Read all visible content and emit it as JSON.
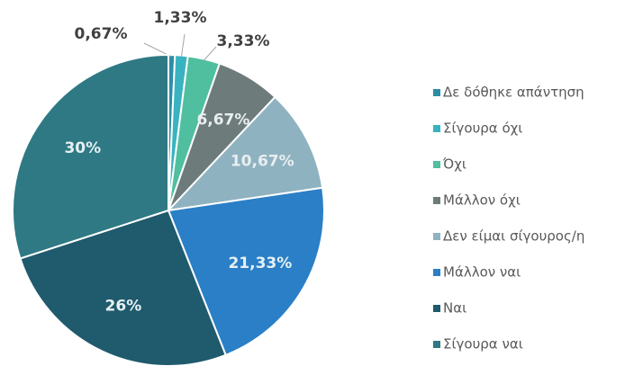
{
  "chart_data": {
    "type": "pie",
    "categories": [
      "Δε δόθηκε απάντηση",
      "Σίγουρα όχι",
      "Όχι",
      "Μάλλον όχι",
      "Δεν είμαι σίγουρος/η",
      "Μάλλον ναι",
      "Ναι",
      "Σίγουρα ναι"
    ],
    "values": [
      0.67,
      1.33,
      3.33,
      6.67,
      10.67,
      21.33,
      26,
      30
    ],
    "value_labels": [
      "0,67%",
      "1,33%",
      "3,33%",
      "6,67%",
      "10,67%",
      "21,33%",
      "26%",
      "30%"
    ],
    "colors": [
      "#2b8ea6",
      "#3ab3c0",
      "#4fbf9f",
      "#6e7b7b",
      "#8fb2c1",
      "#2a7fc7",
      "#1f5a6d",
      "#2e7984"
    ],
    "legend": "right"
  }
}
